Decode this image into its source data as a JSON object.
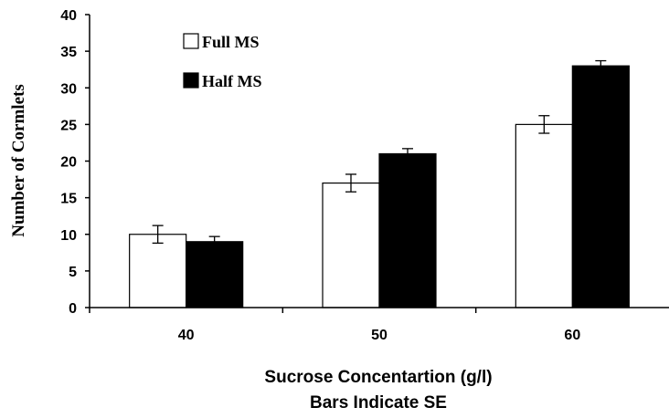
{
  "chart_data": {
    "type": "bar",
    "title": "",
    "categories": [
      "40",
      "50",
      "60"
    ],
    "series": [
      {
        "name": "Full MS",
        "values": [
          10,
          17,
          25
        ],
        "errors": [
          1.2,
          1.2,
          1.2
        ],
        "color": "#ffffff"
      },
      {
        "name": "Half MS",
        "values": [
          9,
          21,
          33
        ],
        "errors": [
          0.7,
          0.7,
          0.7
        ],
        "color": "#000000"
      }
    ],
    "xlabel": "Sucrose Concentartion (g/l)",
    "xlabel_line2": "Bars Indicate SE",
    "ylabel": "Number of Cormlets",
    "ylim": [
      0,
      40
    ],
    "yticks": [
      "0",
      "5",
      "10",
      "15",
      "20",
      "25",
      "30",
      "35",
      "40"
    ],
    "grid": false,
    "legend_position": "top-left"
  }
}
